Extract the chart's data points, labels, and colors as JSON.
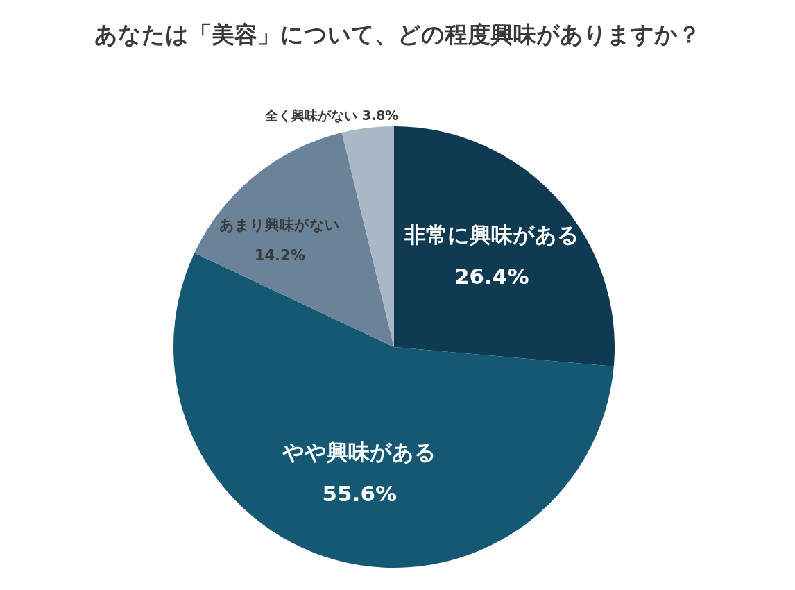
{
  "chart_data": {
    "type": "pie",
    "title": "あなたは「美容」について、どの程度興味がありますか？",
    "categories": [
      "非常に興味がある",
      "やや興味がある",
      "あまり興味がない",
      "全く興味がない"
    ],
    "values": [
      26.4,
      55.6,
      14.2,
      3.8
    ],
    "value_labels": [
      "26.4%",
      "55.6%",
      "14.2%",
      "3.8%"
    ],
    "colors": [
      "#0e3a52",
      "#155874",
      "#6a8399",
      "#a9b8c4"
    ],
    "legend": false
  }
}
